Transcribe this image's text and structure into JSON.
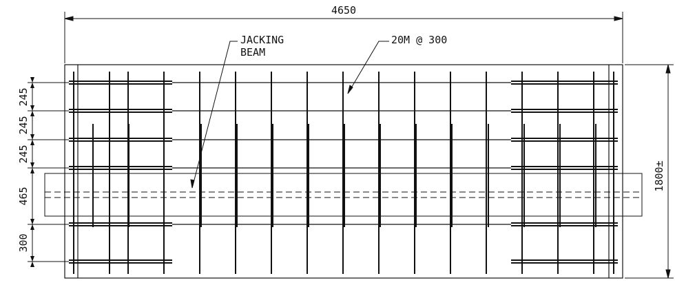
{
  "drawing": {
    "overall_length": "4650",
    "overall_width": "1800±",
    "row_spacings": [
      "245",
      "245",
      "245",
      "465",
      "300"
    ],
    "notes": {
      "jacking_beam_line1": "JACKING",
      "jacking_beam_line2": "BEAM",
      "rebar_callout": "20M @ 300"
    }
  }
}
